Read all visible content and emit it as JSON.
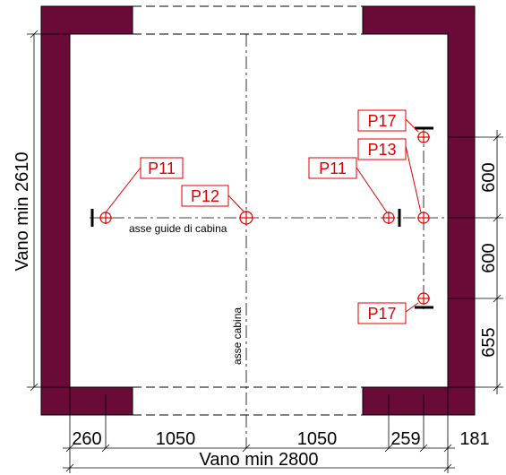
{
  "colors": {
    "wall": "#6a0a36",
    "marker": "#e00000",
    "line": "#000000"
  },
  "labels": {
    "p11_left": "P11",
    "p12": "P12",
    "p11_right": "P11",
    "p13": "P13",
    "p17_top": "P17",
    "p17_bottom": "P17"
  },
  "annotations": {
    "guide_axis": "asse guide di cabina",
    "car_axis": "asse cabina"
  },
  "dimensions": {
    "shaft_depth": "Vano min 2610",
    "shaft_width": "Vano min 2800",
    "bottom": [
      "260",
      "1050",
      "1050",
      "259",
      "181"
    ],
    "right": [
      "600",
      "600",
      "655"
    ]
  }
}
